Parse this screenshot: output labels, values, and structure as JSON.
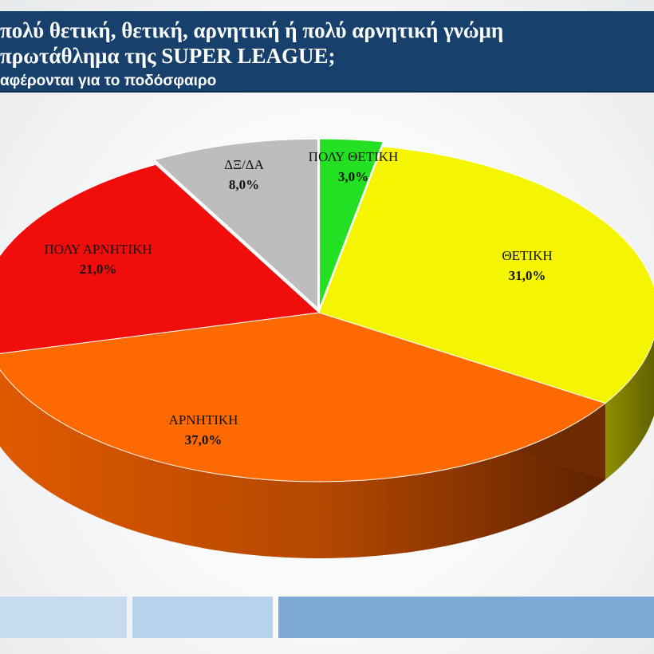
{
  "header": {
    "title_line_1": "πολύ θετική, θετική, αρνητική ή πολύ αρνητική γνώμη",
    "title_line_2": "πρωτάθλημα της SUPER LEAGUE;",
    "subtitle": "αφέρονται για το ποδόσφαιρο"
  },
  "colors": {
    "header_background": "#17406d",
    "footer_blocks": [
      "#c6dbee",
      "#b6d1ea",
      "#7ea9d6"
    ]
  },
  "chart_data": {
    "type": "pie",
    "style": "3d-exploded",
    "legend": "none",
    "slices": [
      {
        "label": "ΠΟΛΥ ΘΕΤΙΚΗ",
        "value": 3.0,
        "value_label": "3,0%",
        "color": "#23e023"
      },
      {
        "label": "ΘΕΤΙΚΗ",
        "value": 31.0,
        "value_label": "31,0%",
        "color": "#f5f500"
      },
      {
        "label": "ΑΡΝΗΤΙΚΗ",
        "value": 37.0,
        "value_label": "37,0%",
        "color": "#ff6a00"
      },
      {
        "label": "ΠΟΛΥ ΑΡΝΗΤΙΚΗ",
        "value": 21.0,
        "value_label": "21,0%",
        "color": "#f20d0d"
      },
      {
        "label": "ΔΞ/ΔΑ",
        "value": 8.0,
        "value_label": "8,0%",
        "color": "#bdbdbd"
      }
    ]
  }
}
